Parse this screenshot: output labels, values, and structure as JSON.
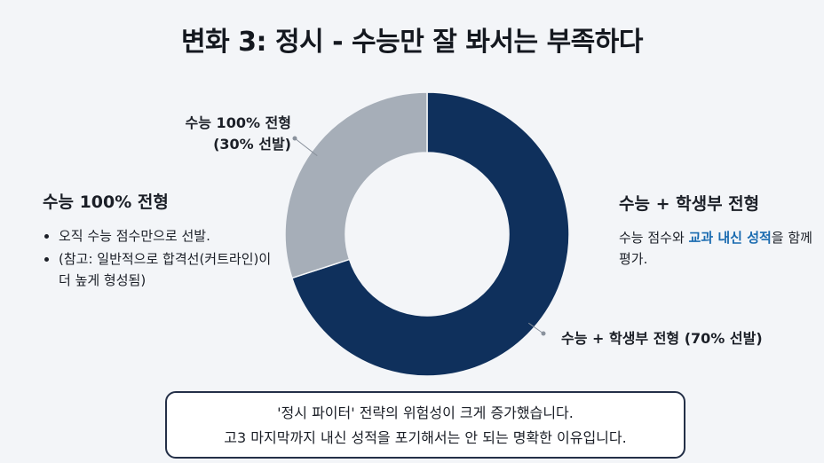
{
  "title": "변화 3: 정시 - 수능만 잘 봐서는 부족하다",
  "chart_data": {
    "type": "pie",
    "categories": [
      "수능 + 학생부 전형",
      "수능 100% 전형"
    ],
    "values": [
      70,
      30
    ],
    "slice_labels": [
      {
        "line1": "수능 + 학생부 전형 (70% 선발)",
        "line2": ""
      },
      {
        "line1": "수능 100% 전형",
        "line2": "(30% 선발)"
      }
    ],
    "colors": [
      "#0f305c",
      "#a6aeb8"
    ]
  },
  "left_panel": {
    "heading": "수능 100% 전형",
    "bullets": [
      "오직 수능 점수만으로 선발.",
      "(참고: 일반적으로 합격선(커트라인)이 더 높게 형성됨)"
    ]
  },
  "right_panel": {
    "heading": "수능 + 학생부 전형",
    "desc_before": "수능 점수와 ",
    "desc_highlight": "교과 내신 성적",
    "desc_after": "을 함께 평가."
  },
  "note": {
    "line1": "'정시 파이터' 전략의 위험성이 크게 증가했습니다.",
    "line2": "고3 마지막까지 내신 성적을 포기해서는 안 되는 명확한 이유입니다."
  }
}
